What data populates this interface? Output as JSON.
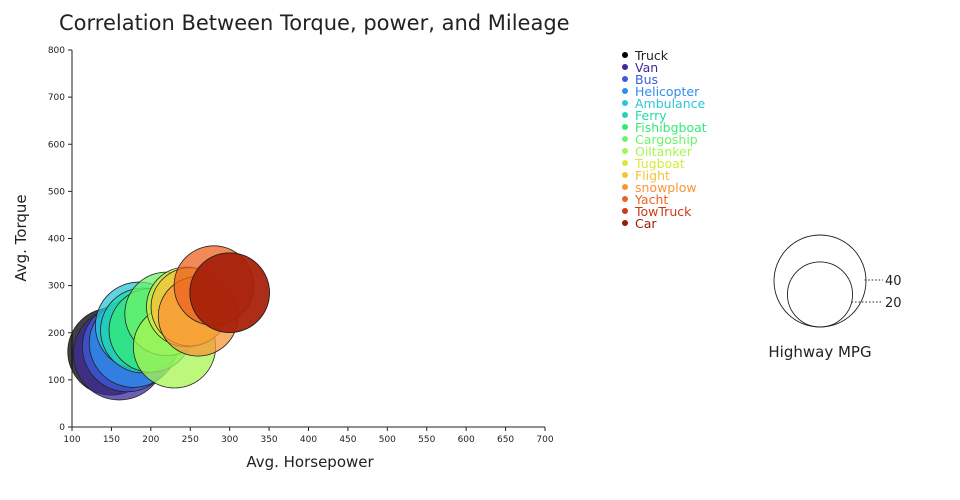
{
  "chart_data": {
    "type": "scatter",
    "title": "Correlation Between Torque, power, and Mileage",
    "xlabel": "Avg. Horsepower",
    "ylabel": "Avg. Torque",
    "xlim": [
      100,
      700
    ],
    "ylim": [
      0,
      800
    ],
    "x_ticks": [
      100,
      150,
      200,
      250,
      300,
      350,
      400,
      450,
      500,
      550,
      600,
      650,
      700
    ],
    "y_ticks": [
      0,
      100,
      200,
      300,
      400,
      500,
      600,
      700,
      800
    ],
    "size_legend": {
      "title": "Highway MPG",
      "values": [
        40,
        20
      ]
    },
    "legend_position": "top-right",
    "series": [
      {
        "name": "Truck",
        "x": 150,
        "y": 160,
        "mpg": 36,
        "color": "#000000"
      },
      {
        "name": "Van",
        "x": 160,
        "y": 155,
        "mpg": 40,
        "color": "#3e2a98"
      },
      {
        "name": "Bus",
        "x": 170,
        "y": 170,
        "mpg": 38,
        "color": "#3b5bdc"
      },
      {
        "name": "Helicopter",
        "x": 178,
        "y": 178,
        "mpg": 37,
        "color": "#2f8fe8"
      },
      {
        "name": "Ambulance",
        "x": 185,
        "y": 215,
        "mpg": 36,
        "color": "#2bc4d8"
      },
      {
        "name": "Ferry",
        "x": 190,
        "y": 205,
        "mpg": 34,
        "color": "#22d6ad"
      },
      {
        "name": "Fishibgboat",
        "x": 200,
        "y": 205,
        "mpg": 33,
        "color": "#36e87a"
      },
      {
        "name": "Cargoship",
        "x": 220,
        "y": 240,
        "mpg": 33,
        "color": "#6cf36a"
      },
      {
        "name": "Oiltanker",
        "x": 230,
        "y": 170,
        "mpg": 32,
        "color": "#a7f552"
      },
      {
        "name": "Tugboat",
        "x": 245,
        "y": 255,
        "mpg": 30,
        "color": "#d6ea3c"
      },
      {
        "name": "Flight",
        "x": 250,
        "y": 255,
        "mpg": 29,
        "color": "#f5c23a"
      },
      {
        "name": "snowplow",
        "x": 260,
        "y": 235,
        "mpg": 30,
        "color": "#f99535"
      },
      {
        "name": "Yacht",
        "x": 280,
        "y": 300,
        "mpg": 30,
        "color": "#ee6221"
      },
      {
        "name": "TowTruck",
        "x": 300,
        "y": 285,
        "mpg": 30,
        "color": "#cf3a12"
      },
      {
        "name": "Car",
        "x": 300,
        "y": 285,
        "mpg": 30,
        "color": "#9c1a08"
      }
    ]
  }
}
